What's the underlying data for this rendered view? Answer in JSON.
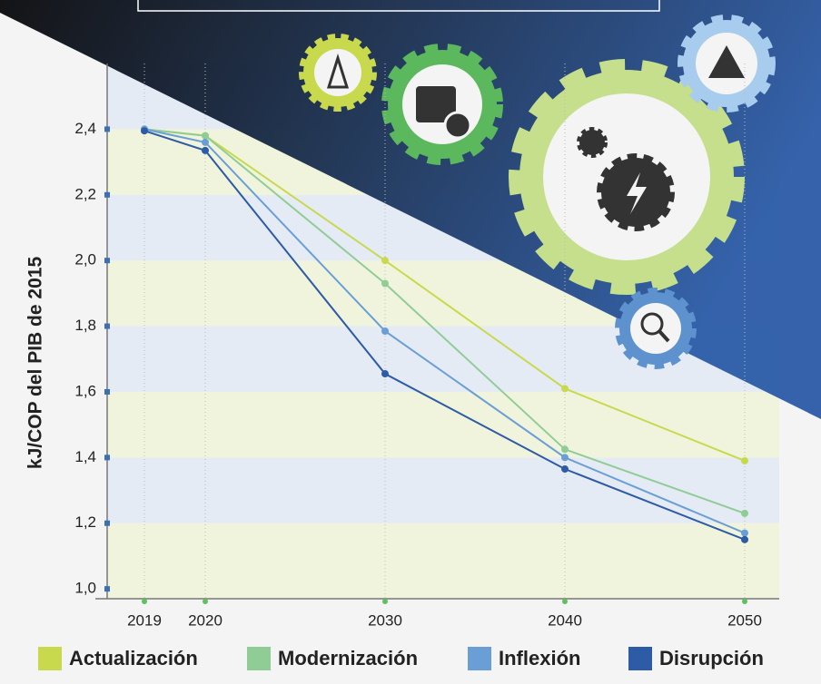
{
  "chart_data": {
    "type": "line",
    "y_label": "kJ/COP del PIB de 2015",
    "categories": [
      "2019",
      "2020",
      "2030",
      "2040",
      "2050"
    ],
    "series": [
      {
        "name": "Actualización",
        "color": "#c9d94e",
        "values": [
          2.4,
          2.38,
          2.0,
          1.61,
          1.39
        ]
      },
      {
        "name": "Modernización",
        "color": "#90cd96",
        "values": [
          2.4,
          2.38,
          1.93,
          1.425,
          1.23
        ]
      },
      {
        "name": "Inflexión",
        "color": "#6a9fd6",
        "values": [
          2.4,
          2.36,
          1.785,
          1.4,
          1.17
        ]
      },
      {
        "name": "Disrupción",
        "color": "#2e5ba6",
        "values": [
          2.395,
          2.335,
          1.655,
          1.365,
          1.15
        ]
      }
    ],
    "ylim": [
      0.97,
      2.6
    ],
    "yticks": [
      {
        "value": 1.0,
        "label": "1,0"
      },
      {
        "value": 1.2,
        "label": "1,2"
      },
      {
        "value": 1.4,
        "label": "1,4"
      },
      {
        "value": 1.6,
        "label": "1,6"
      },
      {
        "value": 1.8,
        "label": "1,8"
      },
      {
        "value": 2.0,
        "label": "2,0"
      },
      {
        "value": 2.2,
        "label": "2,2"
      },
      {
        "value": 2.4,
        "label": "2,4"
      }
    ],
    "grid": true
  }
}
